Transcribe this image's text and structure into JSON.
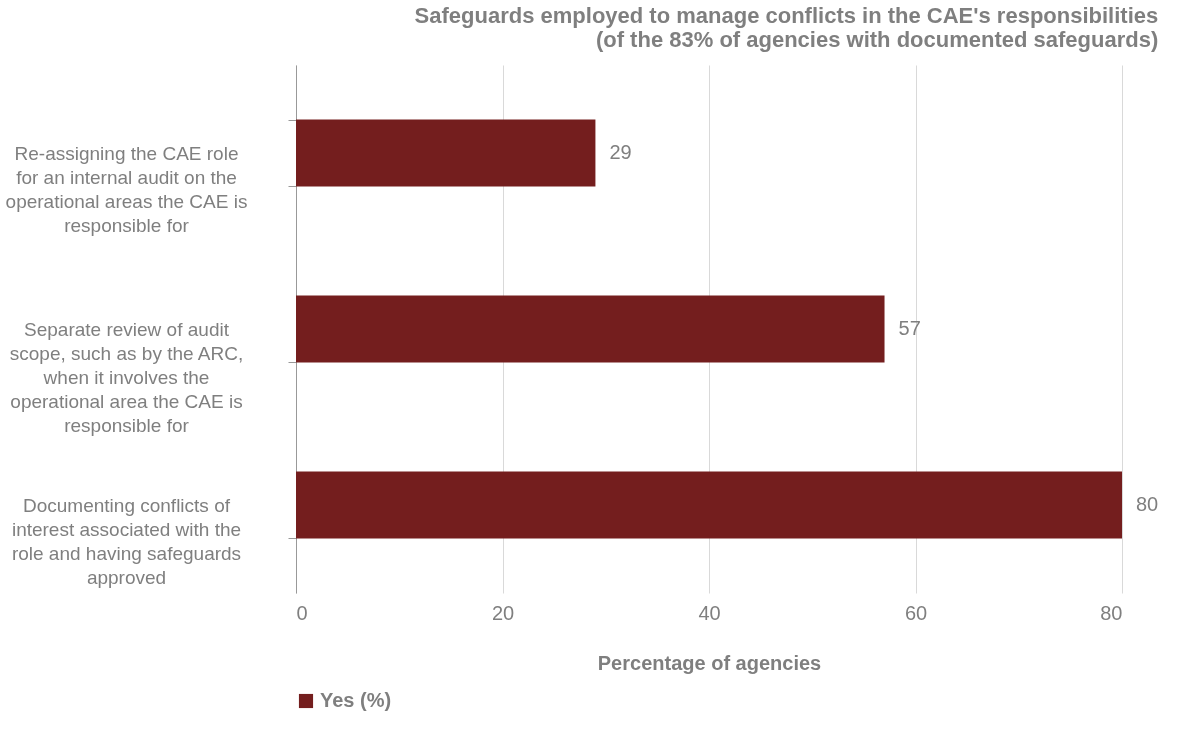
{
  "chart_data": {
    "type": "bar",
    "orientation": "horizontal",
    "title": "Safeguards employed to manage conflicts in the CAE's responsibilities",
    "subtitle": "(of the 83% of agencies with documented safeguards)",
    "categories": [
      "Re-assigning the CAE role for an internal audit on the operational areas the CAE is responsible for",
      "Separate review of audit scope, such as by the ARC, when it involves the operational area the CAE is responsible for",
      "Documenting conflicts of interest associated with the role and having safeguards approved"
    ],
    "series": [
      {
        "name": "Yes (%)",
        "color": "#741e1e",
        "values": [
          29,
          57,
          80
        ]
      }
    ],
    "xlabel": "Percentage of agencies",
    "xlim": [
      0,
      80
    ],
    "xticks": [
      0,
      20,
      40,
      60,
      80
    ],
    "grid": "x",
    "legend": "bottom",
    "data_labels": true
  }
}
